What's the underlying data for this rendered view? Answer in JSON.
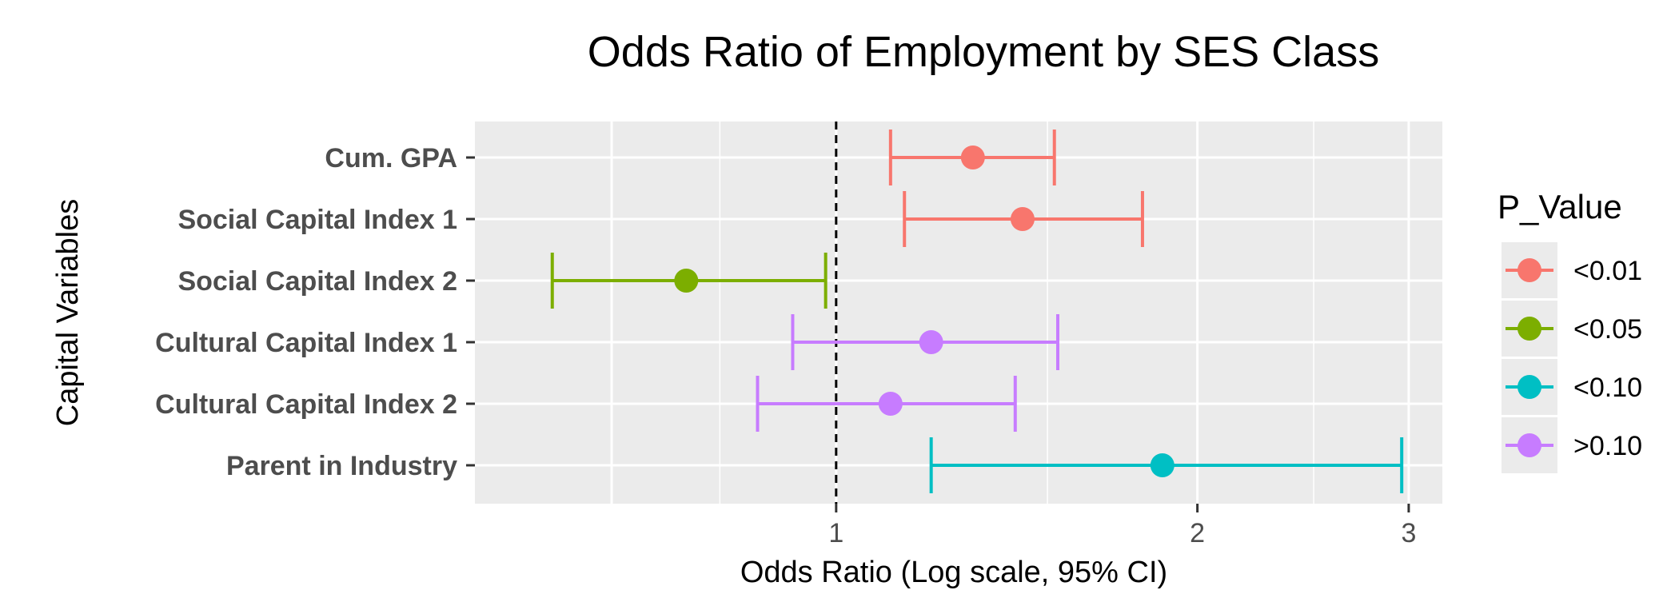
{
  "chart_data": {
    "type": "scatter",
    "title": "Odds Ratio of Employment by SES Class",
    "xlabel": "Odds Ratio (Log scale, 95% CI)",
    "ylabel": "Capital Variables",
    "x_scale": "log",
    "xlim": [
      0.5,
      3.2
    ],
    "x_ticks": [
      1,
      2,
      3
    ],
    "x_tick_labels": [
      "1",
      "2",
      "3"
    ],
    "reference_line": {
      "x": 1,
      "style": "dashed"
    },
    "categories": [
      "Cum. GPA",
      "Social Capital Index 1",
      "Social Capital Index 2",
      "Cultural Capital Index 1",
      "Cultural Capital Index 2",
      "Parent in Industry"
    ],
    "estimates": [
      1.3,
      1.43,
      0.75,
      1.2,
      1.11,
      1.87
    ],
    "ci_low": [
      1.11,
      1.14,
      0.58,
      0.92,
      0.86,
      1.2
    ],
    "ci_high": [
      1.52,
      1.8,
      0.98,
      1.53,
      1.41,
      2.96
    ],
    "p_value": [
      "<0.01",
      "<0.01",
      "<0.05",
      ">0.10",
      ">0.10",
      "<0.10"
    ],
    "legend": {
      "title": "P_Value",
      "position": "right",
      "entries": [
        {
          "label": "<0.01",
          "color": "#F8766D"
        },
        {
          "label": "<0.05",
          "color": "#7CAE00"
        },
        {
          "label": "<0.10",
          "color": "#00BFC4"
        },
        {
          "label": ">0.10",
          "color": "#C77CFF"
        }
      ]
    },
    "grid": true,
    "panel_background": "#EBEBEB"
  }
}
